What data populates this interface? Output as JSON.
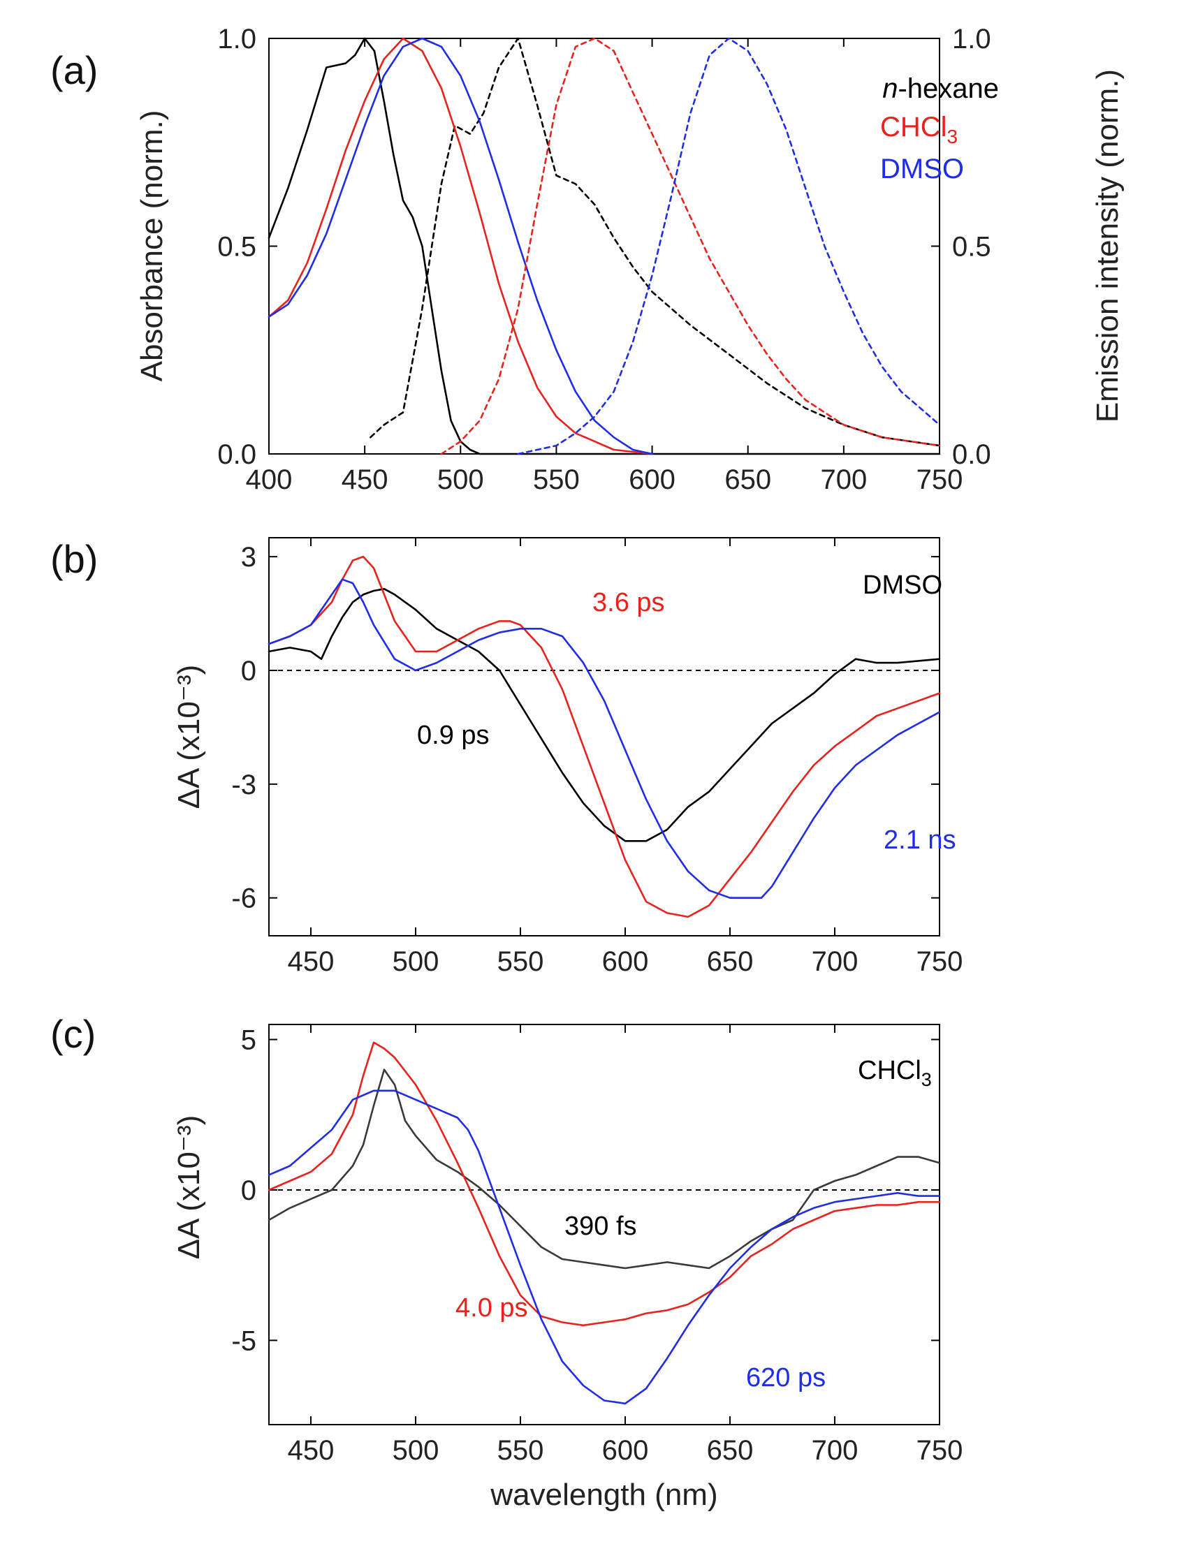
{
  "chart_data": [
    {
      "panel": "(a)",
      "type": "line",
      "xlabel": "",
      "ylabel": "Absorbance (norm.)",
      "ylabel_right": "Emission intensity (norm.)",
      "xlim": [
        400,
        750
      ],
      "ylim": [
        0,
        1.0
      ],
      "xticks": [
        "400",
        "450",
        "500",
        "550",
        "600",
        "650",
        "700",
        "750"
      ],
      "yticks": [
        "0.0",
        "0.5",
        "1.0"
      ],
      "legend": [
        "n-hexane",
        "CHCl3",
        "DMSO"
      ],
      "legend_position": "top-right",
      "colors": {
        "n-hexane": "#000000",
        "CHCl3": "#e8221c",
        "DMSO": "#1f2de6"
      },
      "series": [
        {
          "name": "n-hexane absorbance",
          "color": "#000000",
          "style": "solid",
          "x": [
            400,
            410,
            420,
            430,
            440,
            445,
            450,
            455,
            460,
            465,
            470,
            475,
            480,
            485,
            490,
            495,
            500,
            505,
            510,
            530,
            560,
            600,
            700,
            750
          ],
          "y": [
            0.52,
            0.64,
            0.78,
            0.93,
            0.94,
            0.96,
            1.0,
            0.97,
            0.85,
            0.72,
            0.61,
            0.57,
            0.5,
            0.35,
            0.2,
            0.08,
            0.03,
            0.01,
            0.0,
            0.0,
            0.0,
            0.0,
            0.0,
            0.0
          ]
        },
        {
          "name": "n-hexane emission",
          "color": "#000000",
          "style": "dashed",
          "x": [
            453,
            460,
            470,
            480,
            490,
            497,
            505,
            512,
            520,
            530,
            540,
            550,
            560,
            570,
            580,
            590,
            600,
            620,
            640,
            660,
            680,
            700,
            720,
            750
          ],
          "y": [
            0.04,
            0.07,
            0.1,
            0.35,
            0.65,
            0.79,
            0.77,
            0.82,
            0.93,
            1.0,
            0.84,
            0.67,
            0.65,
            0.6,
            0.52,
            0.45,
            0.39,
            0.31,
            0.24,
            0.17,
            0.11,
            0.07,
            0.04,
            0.02
          ]
        },
        {
          "name": "CHCl3 absorbance",
          "color": "#e8221c",
          "style": "solid",
          "x": [
            400,
            410,
            420,
            430,
            440,
            450,
            460,
            470,
            480,
            490,
            500,
            510,
            520,
            530,
            540,
            550,
            560,
            570,
            580,
            600
          ],
          "y": [
            0.33,
            0.37,
            0.46,
            0.59,
            0.73,
            0.85,
            0.95,
            1.0,
            0.97,
            0.88,
            0.74,
            0.58,
            0.41,
            0.27,
            0.16,
            0.09,
            0.05,
            0.03,
            0.01,
            0.0
          ]
        },
        {
          "name": "DMSO absorbance",
          "color": "#1f2de6",
          "style": "solid",
          "x": [
            400,
            410,
            420,
            430,
            440,
            450,
            460,
            470,
            480,
            490,
            500,
            510,
            520,
            530,
            540,
            550,
            560,
            570,
            580,
            590,
            600
          ],
          "y": [
            0.33,
            0.36,
            0.43,
            0.53,
            0.66,
            0.79,
            0.91,
            0.98,
            1.0,
            0.98,
            0.91,
            0.8,
            0.66,
            0.51,
            0.37,
            0.25,
            0.15,
            0.08,
            0.04,
            0.01,
            0.0
          ]
        },
        {
          "name": "CHCl3 emission",
          "color": "#e8221c",
          "style": "dashed",
          "x": [
            490,
            500,
            510,
            520,
            530,
            540,
            550,
            560,
            570,
            580,
            590,
            600,
            610,
            620,
            630,
            640,
            650,
            660,
            670,
            680,
            690,
            700,
            720,
            750
          ],
          "y": [
            0.0,
            0.03,
            0.08,
            0.18,
            0.35,
            0.6,
            0.84,
            0.98,
            1.0,
            0.97,
            0.87,
            0.77,
            0.67,
            0.57,
            0.47,
            0.39,
            0.31,
            0.24,
            0.18,
            0.13,
            0.1,
            0.07,
            0.04,
            0.02
          ]
        },
        {
          "name": "DMSO emission",
          "color": "#1f2de6",
          "style": "dashed",
          "x": [
            530,
            550,
            560,
            570,
            580,
            590,
            600,
            610,
            620,
            630,
            640,
            650,
            660,
            670,
            680,
            690,
            700,
            710,
            720,
            730,
            740,
            750
          ],
          "y": [
            0.0,
            0.02,
            0.05,
            0.09,
            0.15,
            0.27,
            0.43,
            0.62,
            0.82,
            0.96,
            1.0,
            0.97,
            0.89,
            0.78,
            0.64,
            0.5,
            0.39,
            0.29,
            0.21,
            0.15,
            0.11,
            0.07
          ]
        }
      ]
    },
    {
      "panel": "(b)",
      "type": "line",
      "xlabel": "",
      "ylabel": "ΔA (x10⁻³)",
      "xlim": [
        430,
        750
      ],
      "ylim": [
        -7,
        3.5
      ],
      "xticks": [
        "450",
        "500",
        "550",
        "600",
        "650",
        "700",
        "750"
      ],
      "yticks": [
        "3",
        "0",
        "-3",
        "-6"
      ],
      "solvent_label": "DMSO",
      "annotations": [
        {
          "text": "3.6 ps",
          "color": "#e8221c"
        },
        {
          "text": "0.9 ps",
          "color": "#000000"
        },
        {
          "text": "2.1 ns",
          "color": "#1f2de6"
        }
      ],
      "series": [
        {
          "name": "0.9 ps",
          "color": "#000000",
          "x": [
            430,
            440,
            450,
            455,
            460,
            465,
            470,
            475,
            480,
            485,
            490,
            500,
            510,
            520,
            530,
            540,
            550,
            560,
            570,
            580,
            590,
            600,
            610,
            620,
            630,
            640,
            650,
            660,
            670,
            680,
            690,
            700,
            710,
            720,
            730,
            750
          ],
          "y": [
            0.5,
            0.6,
            0.5,
            0.3,
            0.9,
            1.4,
            1.8,
            2.0,
            2.1,
            2.15,
            2.0,
            1.6,
            1.1,
            0.8,
            0.5,
            0.0,
            -0.9,
            -1.8,
            -2.7,
            -3.5,
            -4.1,
            -4.5,
            -4.5,
            -4.2,
            -3.6,
            -3.2,
            -2.6,
            -2.0,
            -1.4,
            -1.0,
            -0.6,
            -0.1,
            0.3,
            0.2,
            0.2,
            0.3
          ]
        },
        {
          "name": "3.6 ps",
          "color": "#e8221c",
          "x": [
            430,
            440,
            450,
            460,
            465,
            470,
            475,
            480,
            485,
            490,
            500,
            510,
            520,
            530,
            540,
            545,
            550,
            560,
            570,
            580,
            590,
            600,
            610,
            620,
            630,
            640,
            650,
            660,
            670,
            680,
            690,
            700,
            710,
            720,
            730,
            750
          ],
          "y": [
            0.7,
            0.9,
            1.2,
            1.8,
            2.4,
            2.9,
            3.0,
            2.7,
            2.0,
            1.3,
            0.5,
            0.5,
            0.8,
            1.1,
            1.3,
            1.3,
            1.2,
            0.6,
            -0.5,
            -2.0,
            -3.5,
            -5.0,
            -6.1,
            -6.4,
            -6.5,
            -6.2,
            -5.5,
            -4.8,
            -4.0,
            -3.2,
            -2.5,
            -2.0,
            -1.6,
            -1.2,
            -1.0,
            -0.6
          ]
        },
        {
          "name": "2.1 ns",
          "color": "#1f2de6",
          "x": [
            430,
            440,
            450,
            460,
            465,
            470,
            475,
            480,
            490,
            500,
            510,
            520,
            530,
            540,
            550,
            560,
            570,
            580,
            590,
            600,
            610,
            620,
            630,
            640,
            650,
            660,
            665,
            670,
            680,
            690,
            700,
            710,
            720,
            730,
            740,
            750
          ],
          "y": [
            0.7,
            0.9,
            1.2,
            2.0,
            2.4,
            2.3,
            1.8,
            1.2,
            0.3,
            0.0,
            0.2,
            0.5,
            0.8,
            1.0,
            1.1,
            1.1,
            0.9,
            0.2,
            -0.8,
            -2.1,
            -3.4,
            -4.5,
            -5.3,
            -5.8,
            -6.0,
            -6.0,
            -6.0,
            -5.7,
            -4.8,
            -3.9,
            -3.1,
            -2.5,
            -2.1,
            -1.7,
            -1.4,
            -1.1
          ]
        }
      ]
    },
    {
      "panel": "(c)",
      "type": "line",
      "xlabel": "wavelength (nm)",
      "ylabel": "ΔA (x10⁻³)",
      "xlim": [
        430,
        750
      ],
      "ylim": [
        -7.8,
        5.5
      ],
      "xticks": [
        "450",
        "500",
        "550",
        "600",
        "650",
        "700",
        "750"
      ],
      "yticks": [
        "5",
        "0",
        "-5"
      ],
      "solvent_label": "CHCl3",
      "annotations": [
        {
          "text": "390 fs",
          "color": "#000000"
        },
        {
          "text": "4.0 ps",
          "color": "#e8221c"
        },
        {
          "text": "620 ps",
          "color": "#1f2de6"
        }
      ],
      "series": [
        {
          "name": "390 fs",
          "color": "#3a3a3a",
          "x": [
            430,
            440,
            450,
            460,
            470,
            475,
            480,
            485,
            490,
            495,
            500,
            510,
            520,
            530,
            540,
            550,
            560,
            570,
            580,
            590,
            600,
            610,
            620,
            630,
            640,
            650,
            660,
            670,
            680,
            690,
            700,
            710,
            720,
            730,
            740,
            750
          ],
          "y": [
            -1.0,
            -0.6,
            -0.3,
            0.0,
            0.8,
            1.5,
            2.8,
            4.0,
            3.5,
            2.3,
            1.8,
            1.0,
            0.6,
            0.1,
            -0.5,
            -1.2,
            -1.9,
            -2.3,
            -2.4,
            -2.5,
            -2.6,
            -2.5,
            -2.4,
            -2.5,
            -2.6,
            -2.2,
            -1.7,
            -1.3,
            -1.0,
            0.0,
            0.3,
            0.5,
            0.8,
            1.1,
            1.1,
            0.9
          ]
        },
        {
          "name": "4.0 ps",
          "color": "#e8221c",
          "x": [
            430,
            440,
            450,
            460,
            470,
            475,
            480,
            485,
            490,
            500,
            510,
            520,
            530,
            540,
            550,
            560,
            570,
            580,
            590,
            600,
            610,
            620,
            630,
            640,
            650,
            660,
            670,
            680,
            690,
            700,
            710,
            720,
            730,
            740,
            750
          ],
          "y": [
            0.0,
            0.3,
            0.6,
            1.2,
            2.5,
            3.8,
            4.9,
            4.7,
            4.4,
            3.5,
            2.3,
            0.9,
            -0.6,
            -2.2,
            -3.5,
            -4.2,
            -4.4,
            -4.5,
            -4.4,
            -4.3,
            -4.1,
            -4.0,
            -3.8,
            -3.4,
            -2.9,
            -2.2,
            -1.8,
            -1.3,
            -1.0,
            -0.7,
            -0.6,
            -0.5,
            -0.5,
            -0.4,
            -0.4
          ]
        },
        {
          "name": "620 ps",
          "color": "#1f2de6",
          "x": [
            430,
            440,
            450,
            460,
            470,
            480,
            490,
            500,
            510,
            520,
            525,
            530,
            540,
            550,
            560,
            570,
            580,
            590,
            600,
            610,
            620,
            630,
            640,
            650,
            660,
            670,
            680,
            690,
            700,
            710,
            720,
            730,
            740,
            750
          ],
          "y": [
            0.5,
            0.8,
            1.4,
            2.0,
            3.0,
            3.3,
            3.3,
            3.0,
            2.7,
            2.4,
            2.0,
            1.3,
            -0.6,
            -2.5,
            -4.3,
            -5.7,
            -6.5,
            -7.0,
            -7.1,
            -6.6,
            -5.6,
            -4.5,
            -3.5,
            -2.6,
            -1.9,
            -1.3,
            -0.9,
            -0.6,
            -0.4,
            -0.3,
            -0.2,
            -0.1,
            -0.2,
            -0.2
          ]
        }
      ]
    }
  ]
}
